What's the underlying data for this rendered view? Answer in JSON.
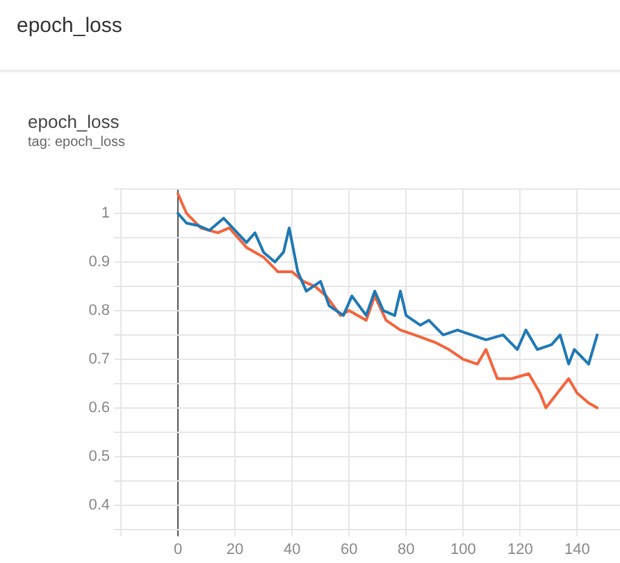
{
  "chart_data": {
    "type": "line",
    "title": "epoch_loss",
    "subtitle": "epoch_loss",
    "annotations": [
      "tag: epoch_loss"
    ],
    "series": [
      {
        "color": "#1f78b4",
        "x": [
          0,
          3,
          7,
          11,
          16,
          20,
          24,
          27,
          30,
          34,
          37,
          39,
          42,
          45,
          50,
          53,
          58,
          61,
          66,
          69,
          72,
          76,
          78,
          80,
          85,
          88,
          93,
          98,
          103,
          108,
          114,
          119,
          122,
          126,
          131,
          134,
          137,
          139,
          144,
          147
        ],
        "values": [
          1.0,
          0.98,
          0.975,
          0.965,
          0.99,
          0.965,
          0.94,
          0.96,
          0.92,
          0.9,
          0.92,
          0.97,
          0.88,
          0.84,
          0.86,
          0.81,
          0.79,
          0.83,
          0.79,
          0.84,
          0.8,
          0.79,
          0.84,
          0.79,
          0.77,
          0.78,
          0.75,
          0.76,
          0.75,
          0.74,
          0.75,
          0.72,
          0.76,
          0.72,
          0.73,
          0.75,
          0.69,
          0.72,
          0.69,
          0.75
        ]
      },
      {
        "color": "#f4643c",
        "x": [
          0,
          3,
          8,
          14,
          18,
          24,
          30,
          35,
          40,
          44,
          48,
          52,
          57,
          60,
          66,
          69,
          73,
          78,
          83,
          90,
          95,
          100,
          105,
          108,
          112,
          117,
          123,
          127,
          129,
          133,
          137,
          140,
          144,
          147
        ],
        "values": [
          1.04,
          1.0,
          0.97,
          0.96,
          0.97,
          0.93,
          0.91,
          0.88,
          0.88,
          0.86,
          0.85,
          0.83,
          0.79,
          0.8,
          0.78,
          0.83,
          0.78,
          0.76,
          0.75,
          0.735,
          0.72,
          0.7,
          0.69,
          0.72,
          0.66,
          0.66,
          0.67,
          0.63,
          0.6,
          0.63,
          0.66,
          0.63,
          0.61,
          0.6
        ]
      }
    ],
    "xlim": [
      -20,
      155
    ],
    "xticks": [
      {
        "value": -20,
        "label": null
      },
      0,
      20,
      40,
      60,
      80,
      100,
      120,
      140
    ],
    "ylim": [
      0.35,
      1.05
    ],
    "yticks": [
      {
        "value": 0.35,
        "label": null
      },
      0.4,
      {
        "value": 0.45,
        "label": null
      },
      0.5,
      {
        "value": 0.55,
        "label": null
      },
      0.6,
      {
        "value": 0.65,
        "label": null
      },
      0.7,
      {
        "value": 0.75,
        "label": null
      },
      0.8,
      {
        "value": 0.85,
        "label": null
      },
      0.9,
      {
        "value": 0.95,
        "label": null
      },
      1,
      {
        "value": 1.05,
        "label": null
      }
    ],
    "grid": true,
    "legend": false,
    "marker": "none",
    "line_style": "solid"
  }
}
